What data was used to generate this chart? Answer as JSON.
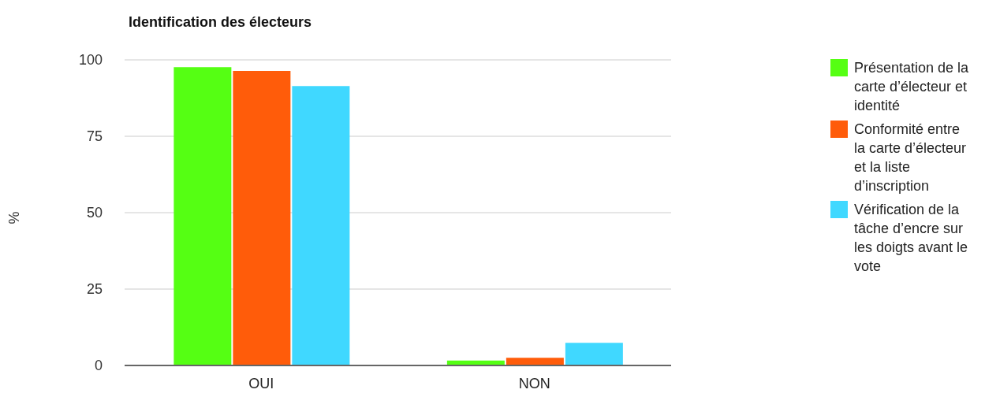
{
  "chart_data": {
    "type": "bar",
    "title": "Identification des électeurs",
    "ylabel": "%",
    "categories": [
      "OUI",
      "NON"
    ],
    "series": [
      {
        "name": "Présentation de la carte d’électeur et identité",
        "color": "#55ff13",
        "values": [
          97.6,
          1.6
        ]
      },
      {
        "name": "Conformité entre la carte d’électeur et la liste d’inscription",
        "color": "#ff5c0a",
        "values": [
          96.4,
          2.5
        ]
      },
      {
        "name": "Vérification de la tâche d’encre sur les doigts avant le vote",
        "color": "#40d8ff",
        "values": [
          91.4,
          7.4
        ]
      }
    ],
    "ylim": [
      0,
      100
    ],
    "yticks": [
      0,
      25,
      50,
      75,
      100
    ],
    "grid": "y",
    "legend": "right"
  }
}
